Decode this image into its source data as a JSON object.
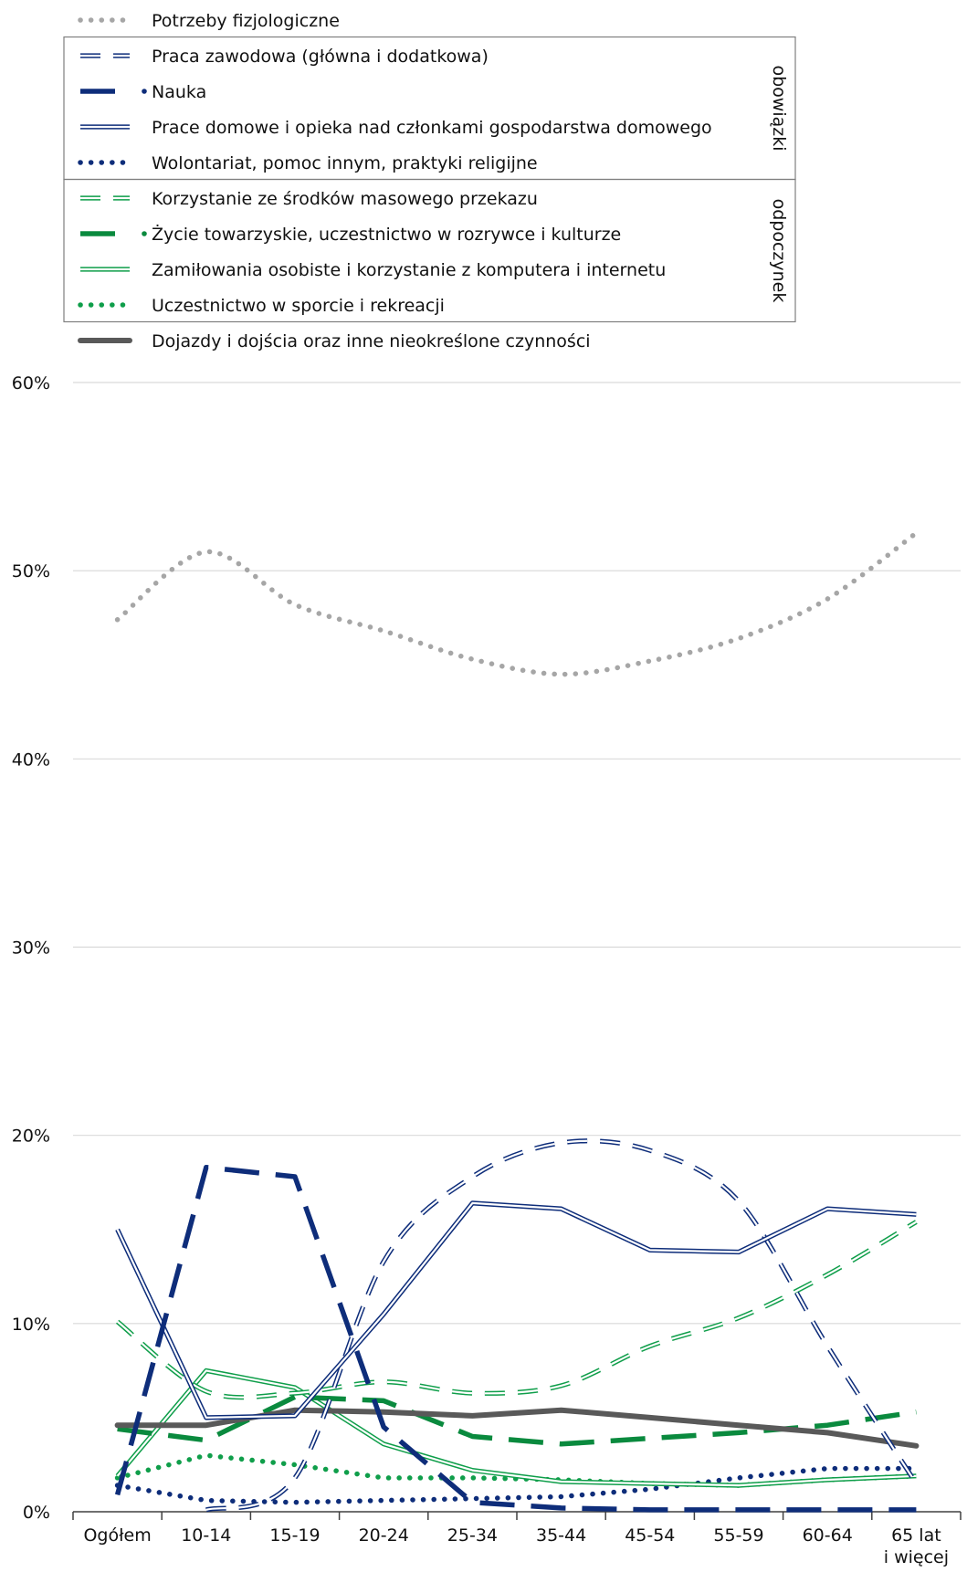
{
  "chart_data": {
    "type": "line",
    "categories": [
      "Ogółem",
      "10-14",
      "15-19",
      "20-24",
      "25-34",
      "35-44",
      "45-54",
      "55-59",
      "60-64",
      "65 lat|i więcej"
    ],
    "ylim": [
      0,
      60
    ],
    "yticks": [
      "0%",
      "10%",
      "20%",
      "30%",
      "40%",
      "50%",
      "60%"
    ],
    "grid": true,
    "legend_placement": "top",
    "legend_groups": [
      {
        "label": "obowiązki",
        "series": [
          1,
          2,
          3,
          4
        ]
      },
      {
        "label": "odpoczynek",
        "series": [
          5,
          6,
          7,
          8
        ]
      }
    ],
    "series": [
      {
        "name": "Potrzeby fizjologiczne",
        "style": "dotted-light",
        "color": "#a6a6a6",
        "values": [
          47.4,
          51.0,
          48.2,
          46.8,
          45.3,
          44.5,
          45.2,
          46.4,
          48.5,
          52.0
        ]
      },
      {
        "name": "Praca zawodowa (główna i dodatkowa)",
        "style": "double-dash",
        "color": "#0e2d7a",
        "values": [
          null,
          0.1,
          1.8,
          13.3,
          17.8,
          19.6,
          19.2,
          16.5,
          8.8,
          1.5
        ]
      },
      {
        "name": "Nauka",
        "style": "long-dash-thick",
        "color": "#0e2d7a",
        "values": [
          0.9,
          18.3,
          17.8,
          4.5,
          0.5,
          0.2,
          0.1,
          0.1,
          0.1,
          0.1
        ]
      },
      {
        "name": "Prace domowe i opieka nad członkami gospodarstwa domowego",
        "style": "double",
        "color": "#0e2d7a",
        "values": [
          15.0,
          5.0,
          5.1,
          10.5,
          16.4,
          16.1,
          13.9,
          13.8,
          16.1,
          15.8
        ]
      },
      {
        "name": "Wolontariat, pomoc innym,  praktyki religijne",
        "style": "dotted",
        "color": "#0e2d7a",
        "values": [
          1.4,
          0.6,
          0.5,
          0.6,
          0.7,
          0.8,
          1.2,
          1.8,
          2.3,
          2.3
        ]
      },
      {
        "name": "Korzystanie ze środków masowego przekazu",
        "style": "double-dash",
        "color": "#0f9e4a",
        "values": [
          10.1,
          6.4,
          6.3,
          6.9,
          6.3,
          6.7,
          8.8,
          10.3,
          12.6,
          15.4
        ]
      },
      {
        "name": "Życie towarzyskie, uczestnictwo w rozrywce i kulturze",
        "style": "long-dash-thick",
        "color": "#0a8a3e",
        "values": [
          4.4,
          3.8,
          6.1,
          5.9,
          4.0,
          3.6,
          3.9,
          4.2,
          4.6,
          5.3
        ]
      },
      {
        "name": "Zamiłowania osobiste i korzystanie z komputera i internetu",
        "style": "double",
        "color": "#0f9e4a",
        "values": [
          1.9,
          7.5,
          6.6,
          3.6,
          2.2,
          1.6,
          1.5,
          1.4,
          1.7,
          1.9
        ]
      },
      {
        "name": "Uczestnictwo w sporcie i rekreacji",
        "style": "dotted",
        "color": "#0f9e4a",
        "values": [
          1.8,
          3.0,
          2.5,
          1.8,
          1.8,
          1.7,
          1.5,
          1.4,
          1.7,
          1.9
        ]
      },
      {
        "name": "Dojazdy i dojścia oraz inne nieokreślone czynności",
        "style": "solid-thick",
        "color": "#595959",
        "values": [
          4.6,
          4.6,
          5.4,
          5.3,
          5.1,
          5.4,
          5.0,
          4.6,
          4.2,
          3.5
        ]
      }
    ]
  }
}
